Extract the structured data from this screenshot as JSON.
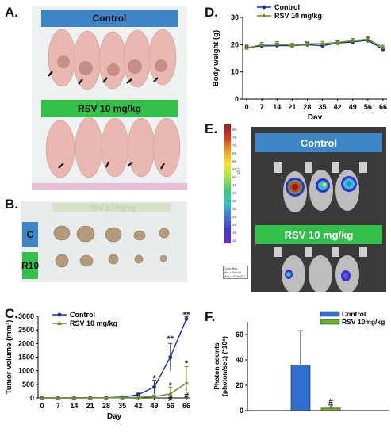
{
  "panels": {
    "A": "A.",
    "B": "B.",
    "C": "C.",
    "D": "D.",
    "E": "E.",
    "F": "F."
  },
  "panel_a": {
    "top_label": "Control",
    "bottom_label": "RSV 10 mg/kg"
  },
  "panel_b": {
    "ruler_text": "RSV 10 mg/kg",
    "row_c": "C",
    "row_r10": "R10"
  },
  "panel_e": {
    "top_label": "Control",
    "bottom_label": "RSV 10 mg/kg",
    "colorbar_ticks": [
      "80",
      "75",
      "70",
      "65",
      "60",
      "55",
      "50",
      "45",
      "40",
      "35",
      "30",
      "25",
      "20",
      "15",
      "10"
    ],
    "colorbar_unit": "p/s²",
    "colorbar_caption": [
      "Color Bar",
      "Min = 5e+06",
      "Max = 8.5e+07"
    ]
  },
  "colors": {
    "control": "#1f2f8f",
    "rsv": "#6b8e23",
    "blue_bar": "#3d85c6",
    "green_bar": "#33c04a",
    "f_control_bar": "#2e6fd0",
    "f_rsv_bar": "#6ab02a",
    "ivis_bg": "#3a3a3a"
  },
  "chart_data": [
    {
      "id": "C",
      "type": "line",
      "xlabel": "Day",
      "ylabel": "Tumor volume (mm³)",
      "x": [
        0,
        7,
        14,
        21,
        28,
        35,
        42,
        49,
        56,
        66
      ],
      "xticklabels": [
        "0",
        "7",
        "14",
        "21",
        "28",
        "35",
        "42",
        "49",
        "56",
        "66"
      ],
      "ylim": [
        0,
        3000
      ],
      "yticks": [
        0,
        500,
        1000,
        1500,
        2000,
        2500,
        3000
      ],
      "legend": "top-left",
      "series": [
        {
          "name": "Control",
          "values": [
            0,
            0,
            0,
            5,
            10,
            30,
            120,
            400,
            1500,
            2900
          ],
          "err": [
            0,
            0,
            0,
            5,
            10,
            20,
            60,
            250,
            500,
            80
          ]
        },
        {
          "name": "RSV 10 mg/kg",
          "values": [
            0,
            0,
            0,
            0,
            5,
            10,
            20,
            50,
            150,
            550
          ],
          "err": [
            0,
            0,
            0,
            0,
            5,
            10,
            15,
            60,
            250,
            600
          ]
        }
      ],
      "annotations": [
        {
          "x": 49,
          "y": 700,
          "text": "*",
          "series": "Control"
        },
        {
          "x": 56,
          "y": 2150,
          "text": "**",
          "series": "Control"
        },
        {
          "x": 66,
          "y": 3050,
          "text": "**",
          "series": "Control"
        },
        {
          "x": 56,
          "y": 430,
          "text": "*",
          "series": "RSV 10 mg/kg"
        },
        {
          "x": 56,
          "y": -50,
          "text": "#",
          "series": "RSV 10 mg/kg"
        },
        {
          "x": 66,
          "y": 1250,
          "text": "*",
          "series": "RSV 10 mg/kg"
        },
        {
          "x": 66,
          "y": 80,
          "text": "#",
          "series": "RSV 10 mg/kg"
        }
      ]
    },
    {
      "id": "D",
      "type": "line",
      "xlabel": "Day",
      "ylabel": "Body weight (g)",
      "x": [
        0,
        7,
        14,
        21,
        28,
        35,
        42,
        49,
        56,
        66
      ],
      "xticklabels": [
        "0",
        "7",
        "14",
        "21",
        "28",
        "35",
        "42",
        "49",
        "56",
        "66"
      ],
      "ylim": [
        0,
        30
      ],
      "yticks": [
        0,
        10,
        20,
        30
      ],
      "legend": "top-left",
      "series": [
        {
          "name": "Control",
          "values": [
            19,
            19.5,
            19.7,
            19.6,
            20,
            19.6,
            20.6,
            21,
            21.6,
            18.3
          ],
          "err": [
            0.8,
            0.8,
            0.8,
            0.8,
            0.8,
            0.8,
            0.8,
            0.8,
            1.0,
            0.8
          ]
        },
        {
          "name": "RSV 10 mg/kg",
          "values": [
            18.8,
            20,
            20.3,
            19.7,
            20.3,
            20.4,
            20.8,
            21.5,
            22,
            19
          ],
          "err": [
            0.8,
            0.8,
            0.8,
            0.8,
            0.8,
            0.8,
            0.8,
            0.8,
            1.0,
            0.8
          ]
        }
      ]
    },
    {
      "id": "F",
      "type": "bar",
      "ylabel": "Photon counts (photon/sec) (*10⁸)",
      "categories": [
        "Control",
        "RSV 10mg/kg"
      ],
      "values": [
        36,
        2
      ],
      "err": [
        27,
        2.5
      ],
      "ylim": [
        0,
        70
      ],
      "yticks": [
        0,
        20,
        40,
        60
      ],
      "legend": "top-right",
      "annotations": [
        {
          "category": "RSV 10mg/kg",
          "text": "#",
          "y": 7
        }
      ]
    }
  ]
}
